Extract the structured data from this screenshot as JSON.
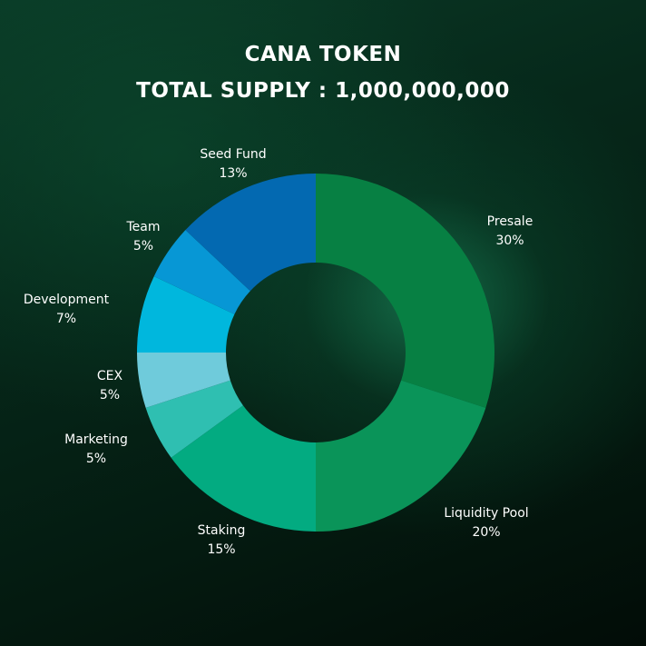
{
  "title_line1": "CANA TOKEN",
  "title_line2": "TOTAL SUPPLY :  1,000,000,000",
  "chart_data": {
    "type": "pie",
    "subtype": "donut",
    "title": "CANA TOKEN",
    "subtitle": "TOTAL SUPPLY :  1,000,000,000",
    "legend": "none",
    "slices": [
      {
        "label": "Presale",
        "value": 30,
        "value_label": "30%",
        "color": "#078043"
      },
      {
        "label": "Liquidity Pool",
        "value": 20,
        "value_label": "20%",
        "color": "#0a9459"
      },
      {
        "label": "Staking",
        "value": 15,
        "value_label": "15%",
        "color": "#03ab81"
      },
      {
        "label": "Marketing",
        "value": 5,
        "value_label": "5%",
        "color": "#2fbfb1"
      },
      {
        "label": "CEX",
        "value": 5,
        "value_label": "5%",
        "color": "#6fcbdb"
      },
      {
        "label": "Development",
        "value": 7,
        "value_label": "7%",
        "color": "#00b7dd"
      },
      {
        "label": "Team",
        "value": 5,
        "value_label": "5%",
        "color": "#0797d5"
      },
      {
        "label": "Seed Fund",
        "value": 13,
        "value_label": "13%",
        "color": "#0369b1"
      }
    ]
  }
}
